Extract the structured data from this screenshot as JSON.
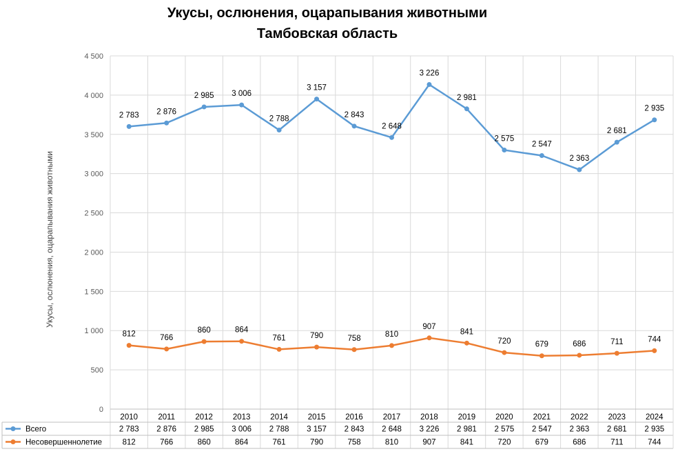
{
  "chart_data": {
    "type": "line",
    "title_line1": "Укусы, ослюнения, оцарапывания животными",
    "title_line2": "Тамбовская область",
    "ylabel": "Укусы, ослюнения, оцарапывания животными",
    "ylim": [
      0,
      4500
    ],
    "yticks": [
      "0",
      "500",
      "1 000",
      "1 500",
      "2 000",
      "2 500",
      "3 000",
      "3 500",
      "4 000",
      "4 500"
    ],
    "categories": [
      "2010",
      "2011",
      "2012",
      "2013",
      "2014",
      "2015",
      "2016",
      "2017",
      "2018",
      "2019",
      "2020",
      "2021",
      "2022",
      "2023",
      "2024"
    ],
    "grid": true,
    "legend_placement": "data-table",
    "series": [
      {
        "name": "Всего",
        "color": "#5B9BD5",
        "values": [
          2783,
          2876,
          2985,
          3006,
          2788,
          3157,
          2843,
          2648,
          3226,
          2981,
          2575,
          2547,
          2363,
          2681,
          2935
        ],
        "plotted": [
          3600,
          3645,
          3850,
          3875,
          3555,
          3950,
          3605,
          3460,
          4135,
          3825,
          3300,
          3230,
          3050,
          3400,
          3685
        ],
        "labels": [
          "2 783",
          "2 876",
          "2 985",
          "3 006",
          "2 788",
          "3 157",
          "2 843",
          "2 648",
          "3 226",
          "2 981",
          "2 575",
          "2 547",
          "2 363",
          "2 681",
          "2 935"
        ]
      },
      {
        "name": "Несовершеннолетие",
        "color": "#ED7D31",
        "values": [
          812,
          766,
          860,
          864,
          761,
          790,
          758,
          810,
          907,
          841,
          720,
          679,
          686,
          711,
          744
        ],
        "plotted": [
          812,
          766,
          860,
          864,
          761,
          790,
          758,
          810,
          907,
          841,
          720,
          679,
          686,
          711,
          744
        ],
        "labels": [
          "812",
          "766",
          "860",
          "864",
          "761",
          "790",
          "758",
          "810",
          "907",
          "841",
          "720",
          "679",
          "686",
          "711",
          "744"
        ]
      }
    ]
  }
}
